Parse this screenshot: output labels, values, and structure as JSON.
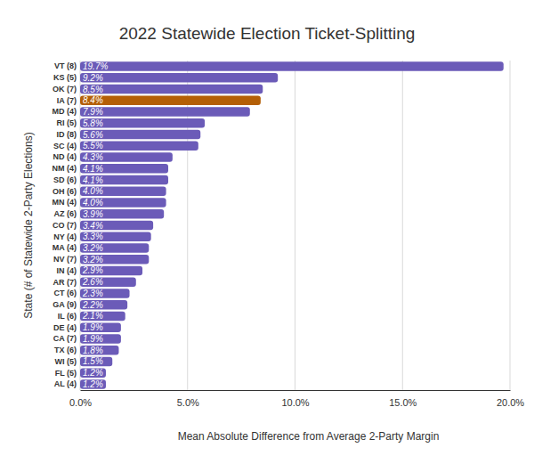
{
  "chart_data": {
    "type": "bar",
    "orientation": "horizontal",
    "title": "2022 Statewide Election Ticket-Splitting",
    "x_label": "Mean Absolute Difference from Average 2-Party Margin",
    "y_label": "State (# of Statewide 2-Party Elections)",
    "categories": [
      "VT (8)",
      "KS (5)",
      "OK (7)",
      "IA (7)",
      "MD (4)",
      "RI (5)",
      "ID (8)",
      "SC (4)",
      "ND (4)",
      "NM (4)",
      "SD (6)",
      "OH (6)",
      "MN (4)",
      "AZ (6)",
      "CO (7)",
      "NY (4)",
      "MA (4)",
      "NV (7)",
      "IN (4)",
      "AR (7)",
      "CT (6)",
      "GA (9)",
      "IL (6)",
      "DE (4)",
      "CA (7)",
      "TX (6)",
      "WI (5)",
      "FL (5)",
      "AL (4)"
    ],
    "values": [
      19.7,
      9.2,
      8.5,
      8.4,
      7.9,
      5.8,
      5.6,
      5.5,
      4.3,
      4.1,
      4.1,
      4.0,
      4.0,
      3.9,
      3.4,
      3.3,
      3.2,
      3.2,
      2.9,
      2.6,
      2.3,
      2.2,
      2.1,
      1.9,
      1.9,
      1.8,
      1.5,
      1.2,
      1.2
    ],
    "value_labels": [
      "19.7%",
      "9.2%",
      "8.5%",
      "8.4%",
      "7.9%",
      "5.8%",
      "5.6%",
      "5.5%",
      "4.3%",
      "4.1%",
      "4.1%",
      "4.0%",
      "4.0%",
      "3.9%",
      "3.4%",
      "3.3%",
      "3.2%",
      "3.2%",
      "2.9%",
      "2.6%",
      "2.3%",
      "2.2%",
      "2.1%",
      "1.9%",
      "1.9%",
      "1.8%",
      "1.5%",
      "1.2%",
      "1.2%"
    ],
    "colors": [
      "#6b5bb8",
      "#6b5bb8",
      "#6b5bb8",
      "#b45f06",
      "#6b5bb8",
      "#6b5bb8",
      "#6b5bb8",
      "#6b5bb8",
      "#6b5bb8",
      "#6b5bb8",
      "#6b5bb8",
      "#6b5bb8",
      "#6b5bb8",
      "#6b5bb8",
      "#6b5bb8",
      "#6b5bb8",
      "#6b5bb8",
      "#6b5bb8",
      "#6b5bb8",
      "#6b5bb8",
      "#6b5bb8",
      "#6b5bb8",
      "#6b5bb8",
      "#6b5bb8",
      "#6b5bb8",
      "#6b5bb8",
      "#6b5bb8",
      "#6b5bb8",
      "#6b5bb8"
    ],
    "xlim": [
      0,
      20
    ],
    "xticks": [
      {
        "value": 0,
        "label": "0.0%"
      },
      {
        "value": 5,
        "label": "5.0%"
      },
      {
        "value": 10,
        "label": "10.0%"
      },
      {
        "value": 15,
        "label": "15.0%"
      },
      {
        "value": 20,
        "label": "20.0%"
      }
    ],
    "grid": true,
    "data_labels": true
  }
}
